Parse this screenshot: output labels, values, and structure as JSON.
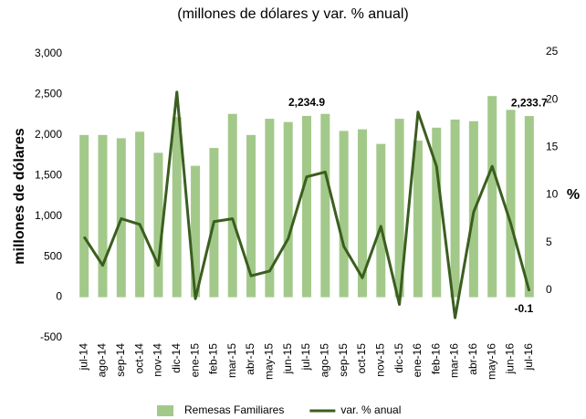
{
  "chart_data": {
    "type": "bar-line",
    "title": "(millones de dólares y var. % anual)",
    "y_label": "millones de dólares",
    "y2_label": "%",
    "categories": [
      "jul-14",
      "ago-14",
      "sep-14",
      "oct-14",
      "nov-14",
      "dic-14",
      "ene-15",
      "feb-15",
      "mar-15",
      "abr-15",
      "may-15",
      "jun-15",
      "jul-15",
      "ago-15",
      "sep-15",
      "oct-15",
      "nov-15",
      "dic-15",
      "ene-16",
      "feb-16",
      "mar-16",
      "abr-16",
      "may-16",
      "jun-16",
      "jul-16"
    ],
    "series": [
      {
        "name": "Remesas Familiares",
        "type": "bar",
        "color": "#a3c98a",
        "values": [
          2000,
          2000,
          1960,
          2040,
          1780,
          2220,
          1620,
          1840,
          2260,
          2000,
          2200,
          2160,
          2234.9,
          2260,
          2050,
          2070,
          1890,
          2200,
          1930,
          2090,
          2190,
          2170,
          2480,
          2310,
          2233.7
        ],
        "value_labels": [
          null,
          null,
          null,
          null,
          null,
          null,
          null,
          null,
          null,
          null,
          null,
          null,
          "2,234.9",
          null,
          null,
          null,
          null,
          null,
          null,
          null,
          null,
          null,
          null,
          null,
          "2,233.7"
        ]
      },
      {
        "name": "var. % anual",
        "type": "line",
        "axis": "y2",
        "color": "#3b5e1f",
        "values": [
          5.6,
          2.6,
          7.5,
          6.9,
          2.6,
          20.8,
          -0.9,
          7.2,
          7.5,
          1.5,
          2.0,
          5.4,
          11.9,
          12.4,
          4.6,
          1.3,
          6.7,
          -1.5,
          18.7,
          13.0,
          -2.9,
          8.2,
          13.0,
          7.0,
          -0.1
        ],
        "value_labels": [
          null,
          null,
          null,
          null,
          null,
          null,
          null,
          null,
          null,
          null,
          null,
          null,
          null,
          null,
          null,
          null,
          null,
          null,
          null,
          null,
          null,
          null,
          null,
          null,
          "-0.1"
        ]
      }
    ],
    "ylim": [
      -500,
      3000
    ],
    "yticks": [
      -500,
      0,
      500,
      {
        "value": 1000,
        "label": "1,000"
      },
      {
        "value": 1500,
        "label": "1,500"
      },
      {
        "value": 2000,
        "label": "2,000"
      },
      {
        "value": 2500,
        "label": "2,500"
      },
      {
        "value": 3000,
        "label": "3,000"
      }
    ],
    "y2lim": [
      -5,
      25
    ],
    "y2ticks": [
      0,
      5,
      10,
      15,
      20,
      25
    ],
    "legend": "bottom"
  }
}
